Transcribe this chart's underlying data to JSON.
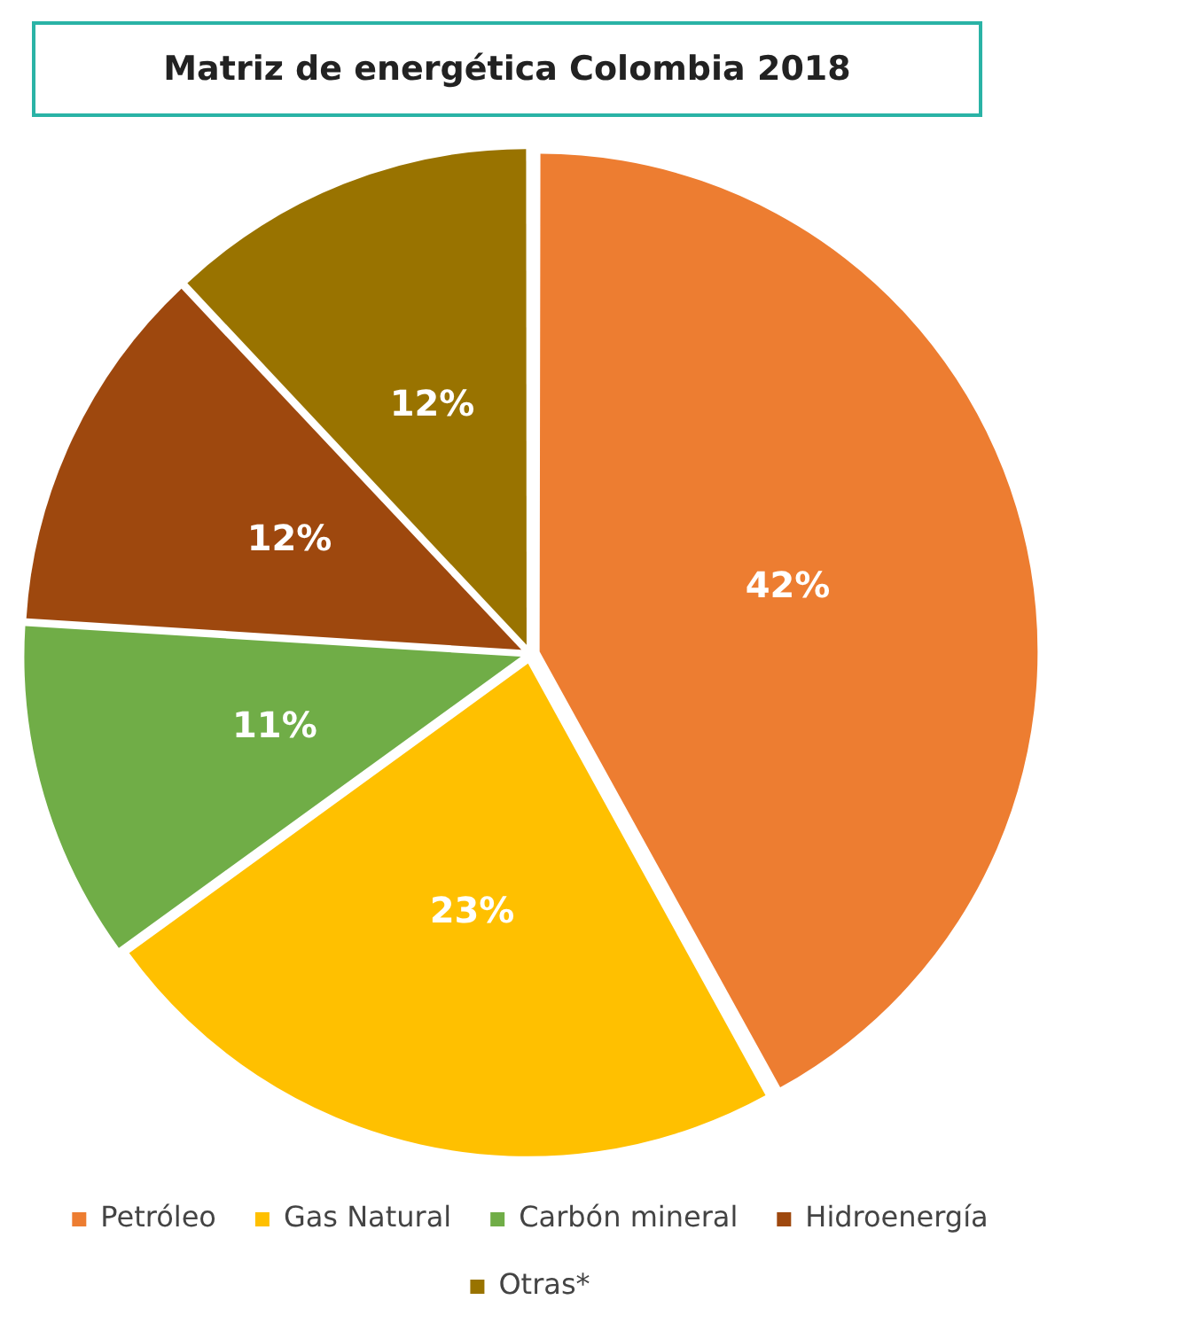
{
  "chart_data": {
    "type": "pie",
    "title": "Matriz de energética Colombia 2018",
    "categories": [
      "Petróleo",
      "Gas Natural",
      "Carbón mineral",
      "Hidroenergía",
      "Otras*"
    ],
    "values": [
      42,
      23,
      11,
      12,
      12
    ],
    "colors": [
      "#ed7d31",
      "#ffc000",
      "#70ad47",
      "#9e480e",
      "#997300"
    ],
    "value_labels": [
      "42%",
      "23%",
      "11%",
      "12%",
      "12%"
    ],
    "legend": "bottom"
  }
}
